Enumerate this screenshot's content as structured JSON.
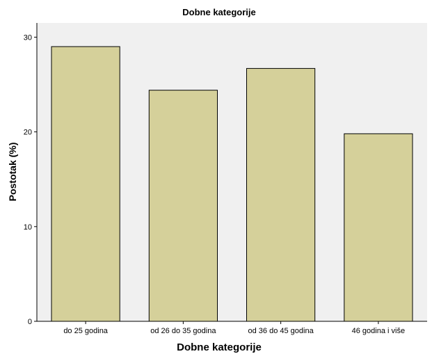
{
  "chart_data": {
    "type": "bar",
    "title": "Dobne kategorije",
    "xlabel": "Dobne kategorije",
    "ylabel": "Postotak (%)",
    "categories": [
      "do 25 godina",
      "od 26 do 35 godina",
      "od 36 do 45 godina",
      "46 godina i više"
    ],
    "values": [
      29.0,
      24.4,
      26.7,
      19.8
    ],
    "ylim": [
      0,
      31.5
    ],
    "yticks": [
      0,
      10,
      20,
      30
    ],
    "grid": false,
    "colors": {
      "bar_fill": "#d5d09a",
      "bar_stroke": "#000000",
      "plot_background": "#f0f0f0"
    }
  }
}
